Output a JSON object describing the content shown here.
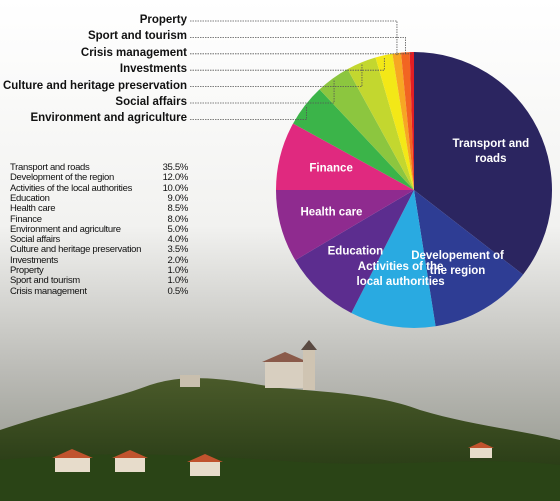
{
  "chart_data": {
    "type": "pie",
    "categories": [
      "Transport and roads",
      "Development of the region",
      "Activities of the local authorities",
      "Education",
      "Health care",
      "Finance",
      "Environment and agriculture",
      "Social affairs",
      "Culture and heritage preservation",
      "Investments",
      "Property",
      "Sport and tourism",
      "Crisis management"
    ],
    "values": [
      35.5,
      12.0,
      10.0,
      9.0,
      8.5,
      8.0,
      5.0,
      4.0,
      3.5,
      2.0,
      1.0,
      1.0,
      0.5
    ],
    "value_labels": [
      "35.5%",
      "12.0%",
      "10.0%",
      "9.0%",
      "8.5%",
      "8.0%",
      "5.0%",
      "4.0%",
      "3.5%",
      "2.0%",
      "1.0%",
      "1.0%",
      "0.5%"
    ],
    "slice_labels": [
      "Transport and roads",
      "Developement of the region",
      "Activities of the local authorities",
      "Education",
      "Health care",
      "Finance",
      null,
      null,
      null,
      null,
      null,
      null,
      null
    ],
    "colors": [
      "#2b2560",
      "#2e3d94",
      "#29aae1",
      "#5c2d8f",
      "#8f2b8f",
      "#e0297f",
      "#3bb449",
      "#8cc63f",
      "#c3d72f",
      "#f3e817",
      "#f7a723",
      "#f26522",
      "#e31e24"
    ]
  }
}
